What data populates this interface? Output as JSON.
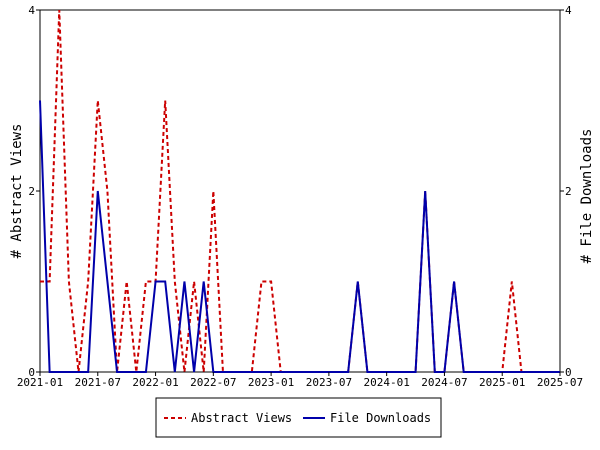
{
  "chart_data": {
    "type": "line",
    "ylabel_left": "# Abstract Views",
    "ylabel_right": "# File Downloads",
    "ylim": [
      0,
      4
    ],
    "y_ticks": [
      "0",
      "2",
      "4"
    ],
    "x_ticks": [
      "2021-01",
      "2021-07",
      "2022-01",
      "2022-07",
      "2023-01",
      "2023-07",
      "2024-01",
      "2024-07",
      "2025-01",
      "2025-07"
    ],
    "x_range": [
      "2021-01",
      "2025-07"
    ],
    "grid": false,
    "legend_position": "bottom",
    "series": [
      {
        "name": "Abstract Views",
        "color": "#cc0000",
        "style": "dashed",
        "points": [
          [
            "2021-01",
            1
          ],
          [
            "2021-02",
            1
          ],
          [
            "2021-03",
            4
          ],
          [
            "2021-04",
            1
          ],
          [
            "2021-05",
            0
          ],
          [
            "2021-06",
            1
          ],
          [
            "2021-07",
            3
          ],
          [
            "2021-08",
            2
          ],
          [
            "2021-09",
            0
          ],
          [
            "2021-10",
            1
          ],
          [
            "2021-11",
            0
          ],
          [
            "2021-12",
            1
          ],
          [
            "2022-01",
            1
          ],
          [
            "2022-02",
            3
          ],
          [
            "2022-03",
            1
          ],
          [
            "2022-04",
            0
          ],
          [
            "2022-05",
            1
          ],
          [
            "2022-06",
            0
          ],
          [
            "2022-07",
            2
          ],
          [
            "2022-08",
            0
          ],
          [
            "2022-09",
            0
          ],
          [
            "2022-10",
            0
          ],
          [
            "2022-11",
            0
          ],
          [
            "2022-12",
            1
          ],
          [
            "2023-01",
            1
          ],
          [
            "2023-02",
            0
          ],
          [
            "2023-03",
            0
          ],
          [
            "2023-04",
            0
          ],
          [
            "2023-05",
            0
          ],
          [
            "2023-06",
            0
          ],
          [
            "2023-07",
            0
          ],
          [
            "2023-08",
            0
          ],
          [
            "2023-09",
            0
          ],
          [
            "2023-10",
            1
          ],
          [
            "2023-11",
            0
          ],
          [
            "2023-12",
            0
          ],
          [
            "2024-01",
            0
          ],
          [
            "2024-02",
            0
          ],
          [
            "2024-03",
            0
          ],
          [
            "2024-04",
            0
          ],
          [
            "2024-05",
            2
          ],
          [
            "2024-06",
            0
          ],
          [
            "2024-07",
            0
          ],
          [
            "2024-08",
            1
          ],
          [
            "2024-09",
            0
          ],
          [
            "2024-10",
            0
          ],
          [
            "2024-11",
            0
          ],
          [
            "2024-12",
            0
          ],
          [
            "2025-01",
            0
          ],
          [
            "2025-02",
            1
          ],
          [
            "2025-03",
            0
          ],
          [
            "2025-04",
            0
          ],
          [
            "2025-05",
            0
          ],
          [
            "2025-06",
            0
          ],
          [
            "2025-07",
            0
          ]
        ]
      },
      {
        "name": "File Downloads",
        "color": "#0000aa",
        "style": "solid",
        "points": [
          [
            "2021-01",
            3
          ],
          [
            "2021-02",
            0
          ],
          [
            "2021-03",
            0
          ],
          [
            "2021-04",
            0
          ],
          [
            "2021-05",
            0
          ],
          [
            "2021-06",
            0
          ],
          [
            "2021-07",
            2
          ],
          [
            "2021-08",
            1
          ],
          [
            "2021-09",
            0
          ],
          [
            "2021-10",
            0
          ],
          [
            "2021-11",
            0
          ],
          [
            "2021-12",
            0
          ],
          [
            "2022-01",
            1
          ],
          [
            "2022-02",
            1
          ],
          [
            "2022-03",
            0
          ],
          [
            "2022-04",
            1
          ],
          [
            "2022-05",
            0
          ],
          [
            "2022-06",
            1
          ],
          [
            "2022-07",
            0
          ],
          [
            "2022-08",
            0
          ],
          [
            "2022-09",
            0
          ],
          [
            "2022-10",
            0
          ],
          [
            "2022-11",
            0
          ],
          [
            "2022-12",
            0
          ],
          [
            "2023-01",
            0
          ],
          [
            "2023-02",
            0
          ],
          [
            "2023-03",
            0
          ],
          [
            "2023-04",
            0
          ],
          [
            "2023-05",
            0
          ],
          [
            "2023-06",
            0
          ],
          [
            "2023-07",
            0
          ],
          [
            "2023-08",
            0
          ],
          [
            "2023-09",
            0
          ],
          [
            "2023-10",
            1
          ],
          [
            "2023-11",
            0
          ],
          [
            "2023-12",
            0
          ],
          [
            "2024-01",
            0
          ],
          [
            "2024-02",
            0
          ],
          [
            "2024-03",
            0
          ],
          [
            "2024-04",
            0
          ],
          [
            "2024-05",
            2
          ],
          [
            "2024-06",
            0
          ],
          [
            "2024-07",
            0
          ],
          [
            "2024-08",
            1
          ],
          [
            "2024-09",
            0
          ],
          [
            "2024-10",
            0
          ],
          [
            "2024-11",
            0
          ],
          [
            "2024-12",
            0
          ],
          [
            "2025-01",
            0
          ],
          [
            "2025-02",
            0
          ],
          [
            "2025-03",
            0
          ],
          [
            "2025-04",
            0
          ],
          [
            "2025-05",
            0
          ],
          [
            "2025-06",
            0
          ],
          [
            "2025-07",
            0
          ]
        ]
      }
    ]
  }
}
